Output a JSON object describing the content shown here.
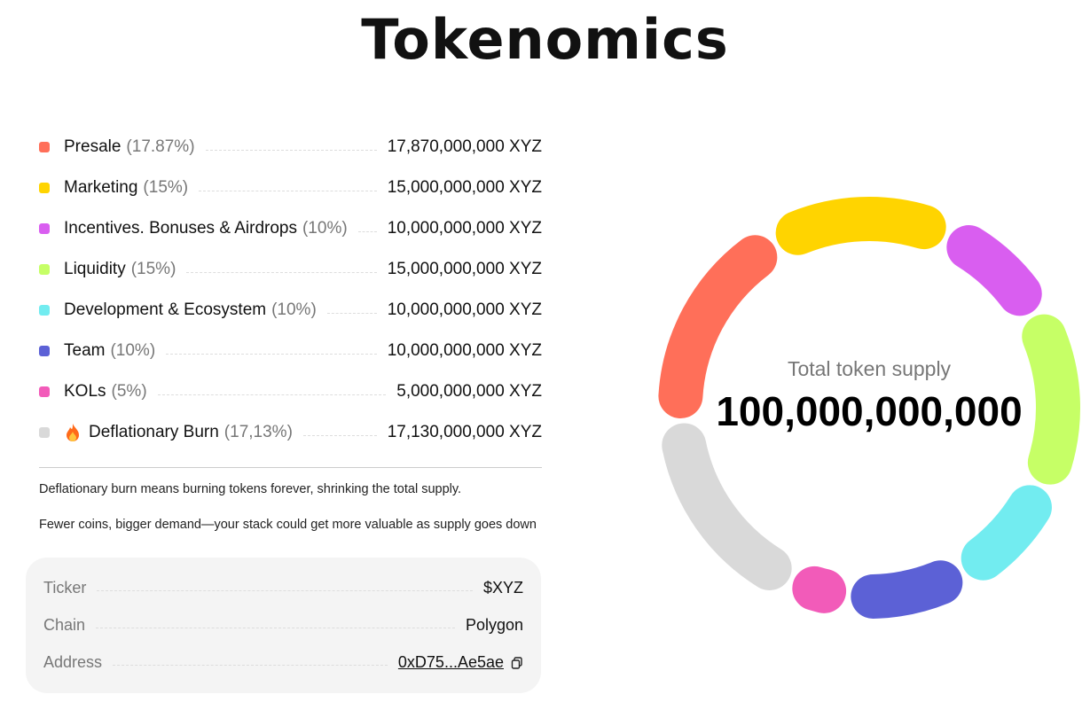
{
  "header": {
    "title": "Tokenomics"
  },
  "chart_data": {
    "type": "donut",
    "categories": [
      "Presale",
      "Marketing",
      "Incentives. Bonuses & Airdrops",
      "Liquidity",
      "Development & Ecosystem",
      "Team",
      "KOLs",
      "Deflationary Burn"
    ],
    "values": [
      17.87,
      15,
      10,
      15,
      10,
      10,
      5,
      17.13
    ],
    "value_labels": [
      "(17.87%)",
      "(15%)",
      "(10%)",
      "(15%)",
      "(10%)",
      "(10%)",
      "(5%)",
      "(17,13%)"
    ],
    "amounts": [
      "17,870,000,000 XYZ",
      "15,000,000,000 XYZ",
      "10,000,000,000 XYZ",
      "15,000,000,000 XYZ",
      "10,000,000,000 XYZ",
      "10,000,000,000 XYZ",
      "5,000,000,000 XYZ",
      "17,130,000,000 XYZ"
    ],
    "colors": [
      "#ff6f59",
      "#ffd400",
      "#d95ef0",
      "#c6ff66",
      "#72ecf0",
      "#5c61d6",
      "#f25bb9",
      "#d9d9d9"
    ],
    "center_label": "Total token supply",
    "center_value": "100,000,000,000"
  },
  "notes": [
    "Deflationary burn means burning tokens forever, shrinking the total supply.",
    "Fewer coins, bigger demand—your stack could get more valuable as supply goes down"
  ],
  "info": {
    "rows": [
      {
        "label": "Ticker",
        "value": "$XYZ"
      },
      {
        "label": "Chain",
        "value": "Polygon"
      },
      {
        "label": "Address",
        "value": "0xD75...Ae5ae"
      }
    ]
  }
}
